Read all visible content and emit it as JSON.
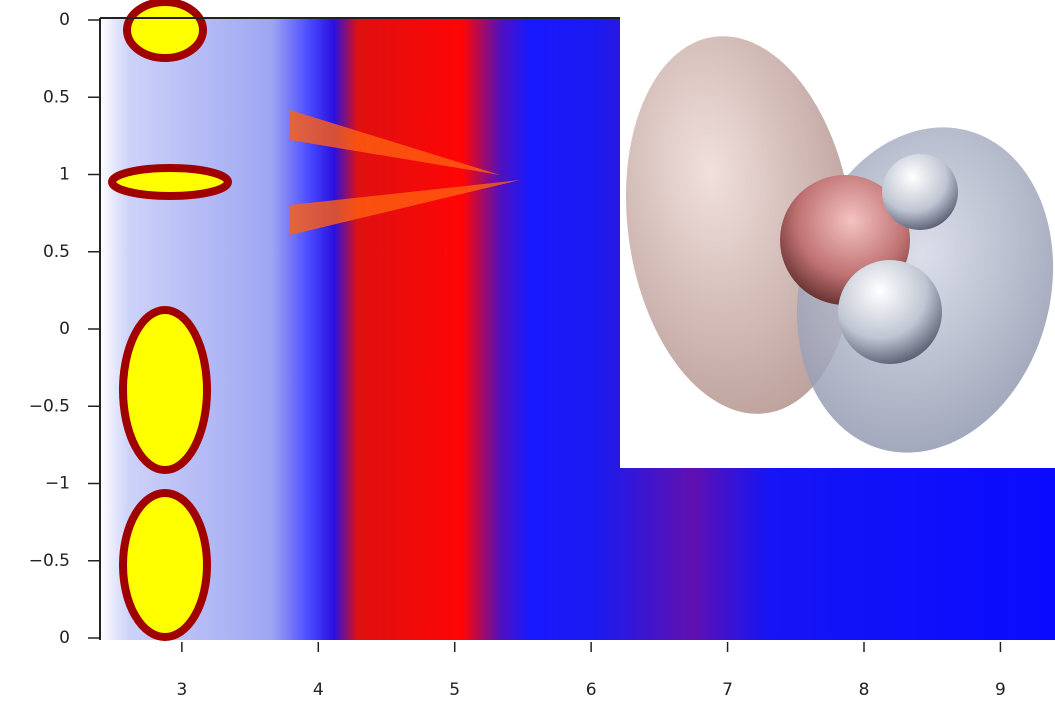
{
  "chart_data": {
    "type": "heatmap",
    "xlim": [
      2.4,
      9.4
    ],
    "xticks": [
      3,
      4,
      5,
      6,
      7,
      8,
      9
    ],
    "yticks": [
      0,
      0.5,
      1,
      0.5,
      0,
      {
        "value": -0.5,
        "label": "−0.5"
      },
      {
        "value": -1,
        "label": "−1"
      },
      {
        "value": -0.5,
        "label": "−0.5"
      },
      0
    ]
  }
}
